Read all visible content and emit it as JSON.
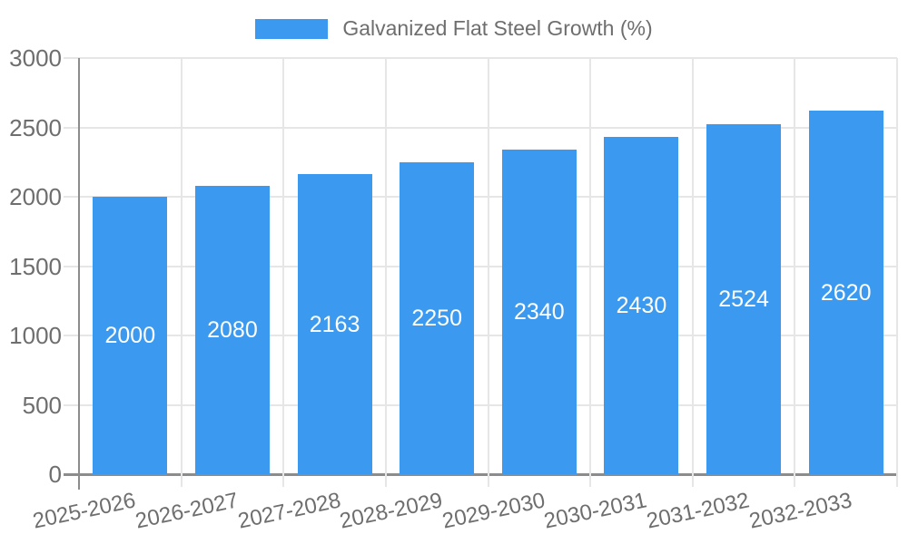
{
  "chart_data": {
    "type": "bar",
    "title": "",
    "legend_label": "Galvanized Flat Steel Growth (%)",
    "legend_position": "top",
    "categories": [
      "2025-2026",
      "2026-2027",
      "2027-2028",
      "2028-2029",
      "2029-2030",
      "2030-2031",
      "2031-2032",
      "2032-2033"
    ],
    "values": [
      2000,
      2080,
      2163,
      2250,
      2340,
      2430,
      2524,
      2620
    ],
    "value_labels": [
      "2000",
      "2080",
      "2163",
      "2250",
      "2340",
      "2430",
      "2524",
      "2620"
    ],
    "xlabel": "",
    "ylabel": "",
    "ylim": [
      0,
      3000
    ],
    "yticks": [
      0,
      500,
      1000,
      1500,
      2000,
      2500,
      3000
    ],
    "grid": "both",
    "colors": {
      "bar": "#3b9af0",
      "gridline": "#e6e6e6",
      "axis_line": "#8c8c8c",
      "tick_text": "#6e6e6e",
      "value_label_text": "#ffffff",
      "background": "#ffffff"
    }
  }
}
